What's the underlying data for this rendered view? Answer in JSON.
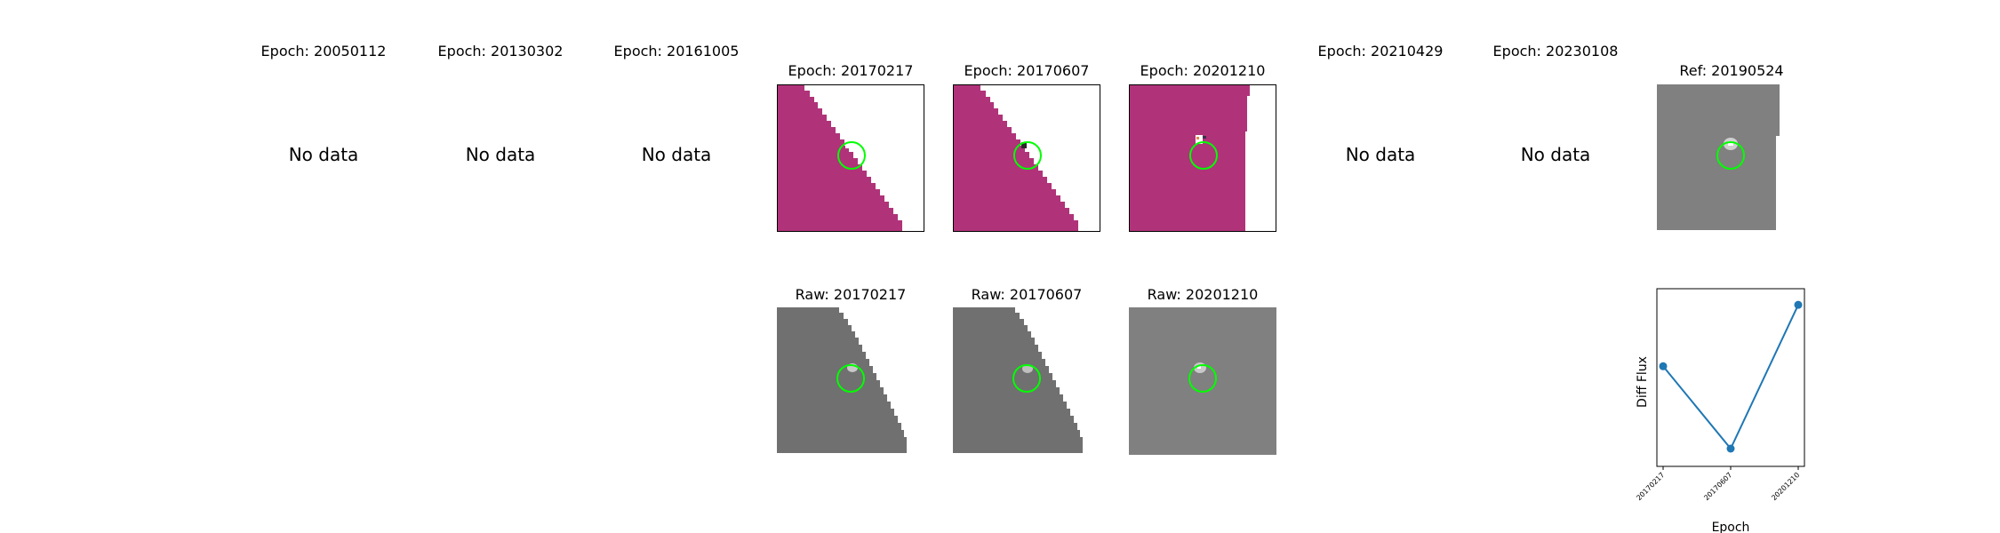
{
  "top_row": [
    {
      "title": "Epoch: 20050112",
      "status": "No data"
    },
    {
      "title": "Epoch: 20130302",
      "status": "No data"
    },
    {
      "title": "Epoch: 20161005",
      "status": "No data"
    },
    {
      "title": "Epoch: 20170217",
      "status": ""
    },
    {
      "title": "Epoch: 20170607",
      "status": ""
    },
    {
      "title": "Epoch: 20201210",
      "status": ""
    },
    {
      "title": "Epoch: 20210429",
      "status": "No data"
    },
    {
      "title": "Epoch: 20230108",
      "status": "No data"
    }
  ],
  "reference": {
    "title": "Ref: 20190524"
  },
  "raw_row": [
    {
      "title": "Raw: 20170217"
    },
    {
      "title": "Raw: 20170607"
    },
    {
      "title": "Raw: 20201210"
    }
  ],
  "colors": {
    "diff_fill": "#b0337a",
    "raw_dark": "#707070",
    "raw_flat": "#808080",
    "aperture": "#00ff00",
    "line": "#1f77b4"
  },
  "chart_data": {
    "type": "line",
    "x": [
      "20170217",
      "20170607",
      "20201210"
    ],
    "y": [
      0.62,
      0.11,
      1.0
    ],
    "xlabel": "Epoch",
    "ylabel": "Diff Flux",
    "ylim": [
      0.0,
      1.1
    ]
  }
}
